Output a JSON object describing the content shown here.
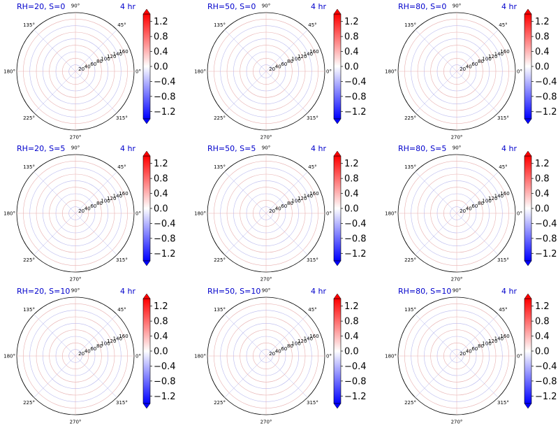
{
  "figure": {
    "grid_rows": 3,
    "grid_cols": 3
  },
  "chart_data": [
    {
      "type": "heatmap",
      "projection": "polar",
      "title": "RH=20, S=0",
      "time_label": "4 hr"
    },
    {
      "type": "heatmap",
      "projection": "polar",
      "title": "RH=50, S=0",
      "time_label": "4 hr"
    },
    {
      "type": "heatmap",
      "projection": "polar",
      "title": "RH=80, S=0",
      "time_label": "4 hr"
    },
    {
      "type": "heatmap",
      "projection": "polar",
      "title": "RH=20, S=5",
      "time_label": "4 hr"
    },
    {
      "type": "heatmap",
      "projection": "polar",
      "title": "RH=50, S=5",
      "time_label": "4 hr"
    },
    {
      "type": "heatmap",
      "projection": "polar",
      "title": "RH=80, S=5",
      "time_label": "4 hr"
    },
    {
      "type": "heatmap",
      "projection": "polar",
      "title": "RH=20, S=10",
      "time_label": "4 hr"
    },
    {
      "type": "heatmap",
      "projection": "polar",
      "title": "RH=50, S=10",
      "time_label": "4 hr"
    },
    {
      "type": "heatmap",
      "projection": "polar",
      "title": "RH=80, S=10",
      "time_label": "4 hr"
    }
  ],
  "polar_axes": {
    "angle_ticks": [
      "0°",
      "45°",
      "90°",
      "135°",
      "180°",
      "225°",
      "270°",
      "315°"
    ],
    "angle_values": [
      0,
      45,
      90,
      135,
      180,
      225,
      270,
      315
    ],
    "radial_ticks": [
      20,
      40,
      60,
      80,
      100,
      120,
      140,
      160
    ],
    "rlim": [
      0,
      180
    ],
    "grid": true,
    "field_value_approx": 0.0
  },
  "colorbar": {
    "colormap": "bwr",
    "vmin": -1.4,
    "vmax": 1.4,
    "ticks": [
      1.2,
      0.8,
      0.4,
      0.0,
      -0.4,
      -0.8,
      -1.2
    ],
    "tick_labels": [
      "1.2",
      "0.8",
      "0.4",
      "0.0",
      "−0.4",
      "−0.8",
      "−1.2"
    ],
    "extend": "both"
  },
  "colors": {
    "title": "#0000cc",
    "neg": "#0000ff",
    "mid": "#ffffff",
    "pos": "#ff0000",
    "grid_red": "#e8b0b0",
    "grid_blue": "#b8b8ee"
  }
}
